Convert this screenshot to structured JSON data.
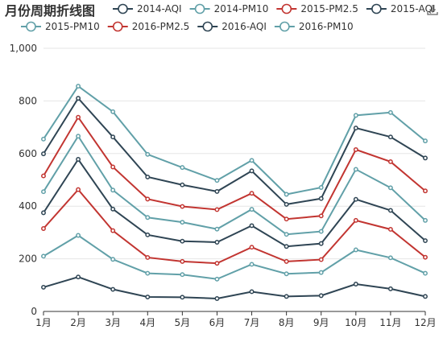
{
  "chart_data": {
    "type": "line",
    "stacked": true,
    "title": "月份周期折线图",
    "categories": [
      "1月",
      "2月",
      "3月",
      "4月",
      "5月",
      "6月",
      "7月",
      "8月",
      "9月",
      "10月",
      "11月",
      "12月"
    ],
    "ylim": [
      0,
      1000
    ],
    "yticks": [
      0,
      200,
      400,
      600,
      800,
      1000
    ],
    "ytick_labels": [
      "0",
      "200",
      "400",
      "600",
      "800",
      "1,000"
    ],
    "grid": true,
    "legend": "top",
    "series": [
      {
        "name": "2014-AQI",
        "color": "#2f4554",
        "values": [
          92,
          131,
          84,
          55,
          54,
          49,
          75,
          57,
          60,
          104,
          86,
          57
        ]
      },
      {
        "name": "2014-PM10",
        "color": "#61a0a8",
        "values": [
          118,
          158,
          114,
          90,
          86,
          74,
          104,
          86,
          88,
          130,
          118,
          88
        ]
      },
      {
        "name": "2015-PM2.5",
        "color": "#c23531",
        "values": [
          105,
          174,
          109,
          60,
          50,
          60,
          65,
          47,
          49,
          112,
          108,
          61
        ]
      },
      {
        "name": "2015-AQI",
        "color": "#2f4554",
        "values": [
          60,
          115,
          82,
          86,
          77,
          80,
          82,
          57,
          61,
          80,
          72,
          63
        ]
      },
      {
        "name": "2015-PM10",
        "color": "#61a0a8",
        "values": [
          80,
          88,
          72,
          66,
          72,
          50,
          62,
          46,
          46,
          114,
          86,
          77
        ]
      },
      {
        "name": "2016-PM2.5",
        "color": "#c23531",
        "values": [
          60,
          72,
          88,
          70,
          60,
          74,
          61,
          58,
          59,
          75,
          99,
          112
        ]
      },
      {
        "name": "2016-AQI",
        "color": "#2f4554",
        "values": [
          84,
          72,
          114,
          84,
          82,
          69,
          85,
          56,
          66,
          82,
          94,
          125
        ]
      },
      {
        "name": "2016-PM10",
        "color": "#61a0a8",
        "values": [
          56,
          46,
          96,
          86,
          66,
          42,
          40,
          38,
          42,
          48,
          93,
          65
        ]
      }
    ]
  },
  "toolbar": {
    "save_icon": "download-icon"
  }
}
